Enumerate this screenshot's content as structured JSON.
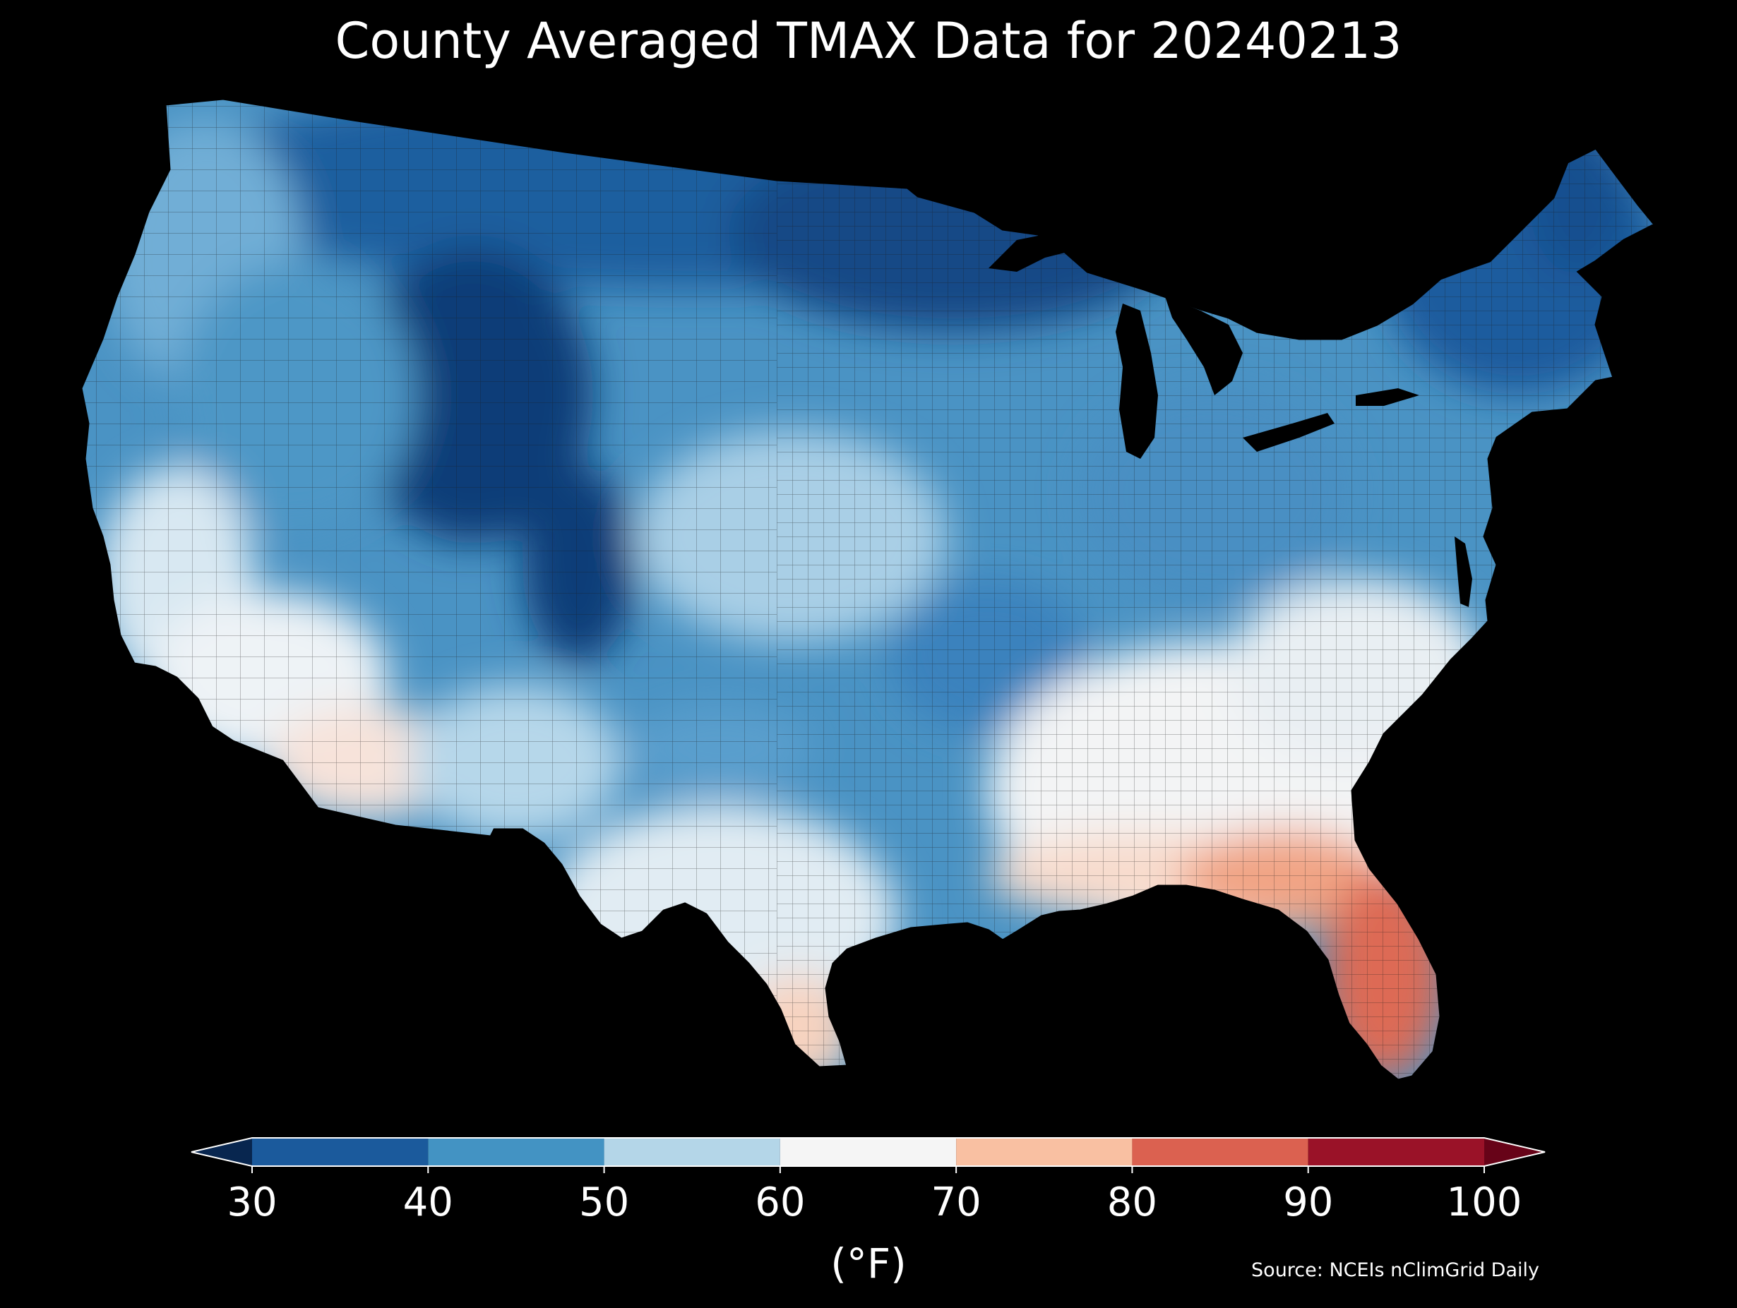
{
  "title": "County Averaged TMAX Data for 20240213",
  "colorbar": {
    "unit_label": "(°F)",
    "ticks": [
      "30",
      "40",
      "50",
      "60",
      "70",
      "80",
      "90",
      "100"
    ],
    "bins": [
      {
        "min": 30,
        "max": 40,
        "color": "#1b5a9c"
      },
      {
        "min": 40,
        "max": 50,
        "color": "#4393c3"
      },
      {
        "min": 50,
        "max": 60,
        "color": "#b4d6e8"
      },
      {
        "min": 60,
        "max": 70,
        "color": "#f5f5f5"
      },
      {
        "min": 70,
        "max": 80,
        "color": "#f9c0a2"
      },
      {
        "min": 80,
        "max": 90,
        "color": "#db6150"
      },
      {
        "min": 90,
        "max": 100,
        "color": "#9a1228"
      }
    ],
    "under_color": "#08264f",
    "over_color": "#670318",
    "extend": "both"
  },
  "source": "Source: NCEIs nClimGrid Daily",
  "colors": {
    "background": "#000000",
    "text": "#ffffff",
    "border": "#1a1a1a",
    "water": "#000000"
  }
}
